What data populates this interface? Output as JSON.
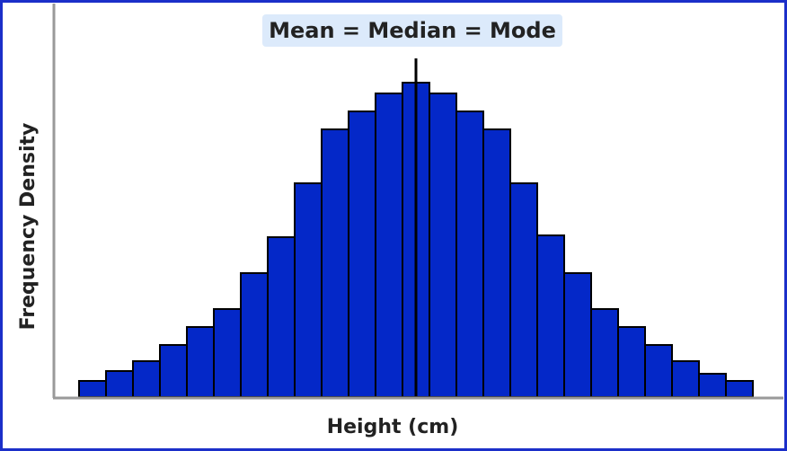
{
  "chart_data": {
    "type": "histogram",
    "annotation": "Mean = Median = Mode",
    "xlabel": "Height (cm)",
    "ylabel": "Frequency Density",
    "values": [
      18,
      29,
      40,
      58,
      78,
      98,
      138,
      178,
      238,
      298,
      318,
      338,
      350,
      338,
      318,
      298,
      238,
      180,
      138,
      98,
      78,
      58,
      40,
      26,
      18
    ],
    "color": "#0428c8",
    "ylim": [
      0,
      438
    ]
  }
}
